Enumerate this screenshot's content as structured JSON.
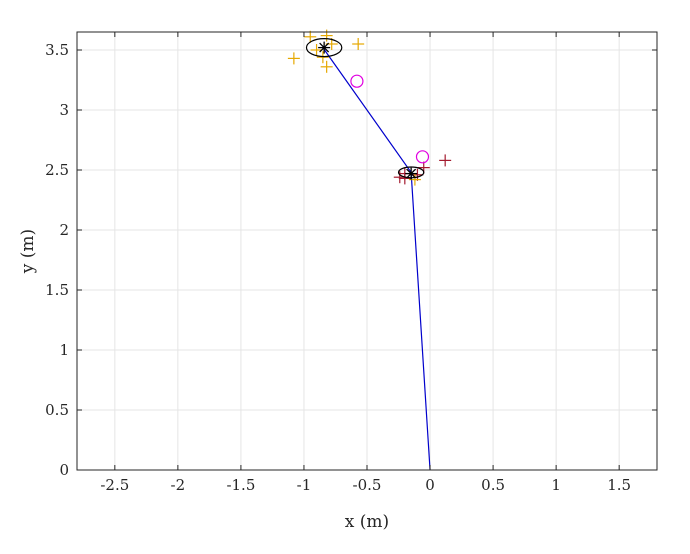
{
  "chart_data": {
    "type": "scatter",
    "xlabel": "x (m)",
    "ylabel": "y (m)",
    "xlim": [
      -2.8,
      1.8
    ],
    "ylim": [
      0,
      3.65
    ],
    "xticks": [
      -2.5,
      -2,
      -1.5,
      -1,
      -0.5,
      0,
      0.5,
      1,
      1.5
    ],
    "xtick_labels": [
      "-2.5",
      "-2",
      "-1.5",
      "-1",
      "-0.5",
      "0",
      "0.5",
      "1",
      "1.5"
    ],
    "yticks": [
      0,
      0.5,
      1,
      1.5,
      2,
      2.5,
      3,
      3.5
    ],
    "ytick_labels": [
      "0",
      "0.5",
      "1",
      "1.5",
      "2",
      "2.5",
      "3",
      "3.5"
    ],
    "grid": true,
    "colors": {
      "path": "#0000cc",
      "yellow_marks": "#e6a800",
      "red_marks": "#a31a2e",
      "circle_marks": "#e000e0",
      "estimate": "#000000",
      "grid": "#e5e5e5"
    },
    "series": [
      {
        "marker": "line",
        "x": [
          -0.85,
          -0.15,
          0.0
        ],
        "y": [
          3.52,
          2.48,
          0.0
        ]
      },
      {
        "marker": "plus",
        "color": "yellow",
        "x": [
          -0.95,
          -0.82,
          -0.78,
          -0.57,
          -0.9,
          -1.08,
          -0.85,
          -0.82
        ],
        "y": [
          3.61,
          3.62,
          3.55,
          3.55,
          3.5,
          3.43,
          3.44,
          3.36
        ]
      },
      {
        "marker": "plus",
        "color": "red",
        "x": [
          0.12,
          -0.05,
          -0.2,
          -0.24,
          -0.2,
          -0.1
        ],
        "y": [
          2.58,
          2.52,
          2.47,
          2.44,
          2.43,
          2.46
        ]
      },
      {
        "marker": "plus",
        "color": "yellow",
        "x": [
          -0.12
        ],
        "y": [
          2.42
        ]
      },
      {
        "marker": "circle",
        "color": "magenta",
        "x": [
          -0.58,
          -0.06
        ],
        "y": [
          3.24,
          2.61
        ]
      },
      {
        "marker": "asterisk",
        "color": "black",
        "x": [
          -0.84,
          -0.15
        ],
        "y": [
          3.52,
          2.47
        ]
      },
      {
        "marker": "ellipse",
        "color": "black",
        "cx": [
          -0.84,
          -0.15
        ],
        "cy": [
          3.52,
          2.48
        ],
        "rx": [
          0.14,
          0.1
        ],
        "ry": [
          0.075,
          0.045
        ]
      }
    ]
  }
}
